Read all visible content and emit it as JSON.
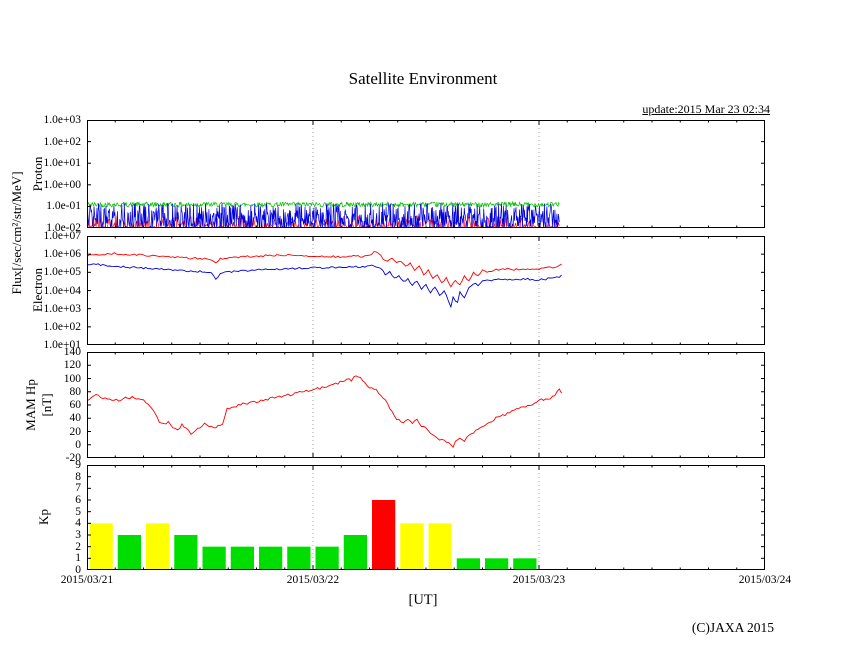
{
  "title": "Satellite Environment",
  "update_text": "update:2015 Mar 23 02:34",
  "xlabel": "[UT]",
  "copyright": "(C)JAXA 2015",
  "flux_label": "Flux[/sec/cm²/str/MeV]",
  "palette": {
    "red": "#ff0000",
    "blue": "#0000dd",
    "green": "#00bb00",
    "bar_green": "#00dd00",
    "bar_yellow": "#ffff00",
    "bar_red": "#ff0000",
    "grid": "#909090",
    "axis": "#000000"
  },
  "x_axis": {
    "min_day": 0,
    "max_day": 3,
    "data_end_day": 2.09,
    "minor_step_day": 0.125,
    "tick_labels": [
      "2015/03/21",
      "2015/03/22",
      "2015/03/23",
      "2015/03/24"
    ]
  },
  "chart_data": [
    {
      "id": "proton",
      "type": "line",
      "ylabel": "Proton",
      "yscale": "log10",
      "ylim": [
        -2,
        3
      ],
      "ytick_vals": [
        3,
        2,
        1,
        0,
        -1,
        -2
      ],
      "ytick_labels": [
        "1.0e+03",
        "1.0e+02",
        "1.0e+01",
        "1.0e+00",
        "1.0e-01",
        "1.0e-02"
      ],
      "series": [
        {
          "name": "proton-green",
          "color": "#00bb00",
          "style": "band",
          "lo": -1.03,
          "hi": -0.8,
          "pow": 1.0,
          "x_end": 2.09,
          "samples": 700
        },
        {
          "name": "proton-red",
          "color": "#ff0000",
          "style": "band",
          "lo": -2.0,
          "hi": -1.42,
          "pow": 3.0,
          "x_end": 2.09,
          "samples": 520
        },
        {
          "name": "proton-blue",
          "color": "#0000dd",
          "style": "band",
          "lo": -2.0,
          "hi": -0.85,
          "pow": 1.55,
          "x_end": 2.09,
          "samples": 950
        }
      ]
    },
    {
      "id": "electron",
      "type": "line",
      "ylabel": "Electron",
      "yscale": "log10",
      "ylim": [
        1,
        7
      ],
      "ytick_vals": [
        7,
        6,
        5,
        4,
        3,
        2,
        1
      ],
      "ytick_labels": [
        "1.0e+07",
        "1.0e+06",
        "1.0e+05",
        "1.0e+04",
        "1.0e+03",
        "1.0e+02",
        "1.0e+01"
      ],
      "series": [
        {
          "name": "electron-red",
          "color": "#ff0000",
          "style": "line",
          "jitter": 0.05,
          "points": [
            [
              0,
              5.92
            ],
            [
              0.06,
              5.98
            ],
            [
              0.12,
              6.03
            ],
            [
              0.18,
              5.99
            ],
            [
              0.25,
              5.95
            ],
            [
              0.3,
              5.9
            ],
            [
              0.35,
              5.86
            ],
            [
              0.42,
              5.8
            ],
            [
              0.5,
              5.76
            ],
            [
              0.55,
              5.7
            ],
            [
              0.57,
              5.48
            ],
            [
              0.59,
              5.74
            ],
            [
              0.63,
              5.8
            ],
            [
              0.7,
              5.86
            ],
            [
              0.76,
              5.9
            ],
            [
              0.82,
              5.93
            ],
            [
              0.88,
              5.96
            ],
            [
              0.94,
              5.93
            ],
            [
              1,
              5.9
            ],
            [
              1.06,
              5.87
            ],
            [
              1.12,
              5.85
            ],
            [
              1.18,
              5.9
            ],
            [
              1.22,
              5.87
            ],
            [
              1.25,
              5.92
            ],
            [
              1.27,
              6.12
            ],
            [
              1.29,
              6.05
            ],
            [
              1.31,
              5.75
            ],
            [
              1.33,
              5.6
            ],
            [
              1.35,
              5.82
            ],
            [
              1.37,
              5.5
            ],
            [
              1.39,
              5.62
            ],
            [
              1.41,
              5.3
            ],
            [
              1.43,
              5.52
            ],
            [
              1.45,
              5.1
            ],
            [
              1.47,
              5.32
            ],
            [
              1.49,
              4.9
            ],
            [
              1.51,
              5.12
            ],
            [
              1.53,
              4.62
            ],
            [
              1.55,
              4.9
            ],
            [
              1.57,
              4.4
            ],
            [
              1.59,
              4.7
            ],
            [
              1.61,
              4.22
            ],
            [
              1.63,
              4.6
            ],
            [
              1.65,
              4.3
            ],
            [
              1.67,
              4.8
            ],
            [
              1.69,
              4.52
            ],
            [
              1.71,
              5.0
            ],
            [
              1.73,
              4.82
            ],
            [
              1.75,
              5.1
            ],
            [
              1.78,
              5.02
            ],
            [
              1.81,
              5.15
            ],
            [
              1.85,
              5.2
            ],
            [
              1.89,
              5.14
            ],
            [
              1.93,
              5.2
            ],
            [
              1.97,
              5.16
            ],
            [
              2.01,
              5.2
            ],
            [
              2.05,
              5.26
            ],
            [
              2.08,
              5.3
            ],
            [
              2.1,
              5.46
            ]
          ]
        },
        {
          "name": "electron-blue",
          "color": "#0000dd",
          "style": "line",
          "jitter": 0.05,
          "points": [
            [
              0,
              5.46
            ],
            [
              0.05,
              5.42
            ],
            [
              0.1,
              5.36
            ],
            [
              0.15,
              5.3
            ],
            [
              0.2,
              5.28
            ],
            [
              0.25,
              5.24
            ],
            [
              0.3,
              5.2
            ],
            [
              0.35,
              5.15
            ],
            [
              0.4,
              5.1
            ],
            [
              0.45,
              5.06
            ],
            [
              0.5,
              5.04
            ],
            [
              0.55,
              5.0
            ],
            [
              0.57,
              4.6
            ],
            [
              0.59,
              4.92
            ],
            [
              0.62,
              5.02
            ],
            [
              0.66,
              5.06
            ],
            [
              0.7,
              5.1
            ],
            [
              0.75,
              5.13
            ],
            [
              0.8,
              5.16
            ],
            [
              0.85,
              5.18
            ],
            [
              0.9,
              5.2
            ],
            [
              0.95,
              5.23
            ],
            [
              1,
              5.25
            ],
            [
              1.05,
              5.26
            ],
            [
              1.1,
              5.28
            ],
            [
              1.15,
              5.3
            ],
            [
              1.2,
              5.3
            ],
            [
              1.25,
              5.33
            ],
            [
              1.27,
              5.4
            ],
            [
              1.3,
              5.18
            ],
            [
              1.32,
              4.9
            ],
            [
              1.34,
              5.02
            ],
            [
              1.36,
              4.7
            ],
            [
              1.38,
              4.82
            ],
            [
              1.4,
              4.5
            ],
            [
              1.42,
              4.62
            ],
            [
              1.44,
              4.3
            ],
            [
              1.46,
              4.5
            ],
            [
              1.48,
              4.1
            ],
            [
              1.5,
              4.3
            ],
            [
              1.52,
              3.9
            ],
            [
              1.54,
              4.2
            ],
            [
              1.56,
              3.7
            ],
            [
              1.58,
              4.0
            ],
            [
              1.6,
              3.42
            ],
            [
              1.61,
              3.05
            ],
            [
              1.62,
              3.6
            ],
            [
              1.64,
              3.3
            ],
            [
              1.65,
              3.9
            ],
            [
              1.67,
              3.62
            ],
            [
              1.69,
              4.2
            ],
            [
              1.71,
              4.4
            ],
            [
              1.73,
              4.3
            ],
            [
              1.75,
              4.5
            ],
            [
              1.78,
              4.56
            ],
            [
              1.82,
              4.6
            ],
            [
              1.86,
              4.62
            ],
            [
              1.9,
              4.6
            ],
            [
              1.94,
              4.63
            ],
            [
              1.98,
              4.6
            ],
            [
              2.02,
              4.62
            ],
            [
              2.06,
              4.68
            ],
            [
              2.09,
              4.75
            ],
            [
              2.1,
              4.86
            ]
          ]
        }
      ]
    },
    {
      "id": "mam",
      "type": "line",
      "ylabel_lines": [
        "MAM Hp",
        "[nT]"
      ],
      "yscale": "linear",
      "ylim": [
        -20,
        140
      ],
      "ytick_vals": [
        140,
        120,
        100,
        80,
        60,
        40,
        20,
        0,
        -20
      ],
      "ytick_labels": [
        "140",
        "120",
        "100",
        "80",
        "60",
        "40",
        "20",
        "0",
        "-20"
      ],
      "series": [
        {
          "name": "mam-hp",
          "color": "#ff0000",
          "style": "line",
          "jitter": 2,
          "points": [
            [
              0,
              68
            ],
            [
              0.04,
              74
            ],
            [
              0.08,
              70
            ],
            [
              0.12,
              66
            ],
            [
              0.16,
              69
            ],
            [
              0.2,
              72
            ],
            [
              0.24,
              70
            ],
            [
              0.27,
              62
            ],
            [
              0.3,
              48
            ],
            [
              0.32,
              34
            ],
            [
              0.34,
              30
            ],
            [
              0.36,
              34
            ],
            [
              0.38,
              26
            ],
            [
              0.4,
              22
            ],
            [
              0.42,
              30
            ],
            [
              0.44,
              24
            ],
            [
              0.46,
              16
            ],
            [
              0.48,
              20
            ],
            [
              0.5,
              26
            ],
            [
              0.52,
              32
            ],
            [
              0.54,
              28
            ],
            [
              0.56,
              25
            ],
            [
              0.6,
              30
            ],
            [
              0.62,
              55
            ],
            [
              0.64,
              57
            ],
            [
              0.67,
              60
            ],
            [
              0.7,
              62
            ],
            [
              0.74,
              64
            ],
            [
              0.78,
              67
            ],
            [
              0.82,
              70
            ],
            [
              0.86,
              73
            ],
            [
              0.9,
              76
            ],
            [
              0.94,
              80
            ],
            [
              0.98,
              82
            ],
            [
              1.02,
              85
            ],
            [
              1.06,
              88
            ],
            [
              1.1,
              92
            ],
            [
              1.13,
              96
            ],
            [
              1.15,
              100
            ],
            [
              1.17,
              97
            ],
            [
              1.19,
              105
            ],
            [
              1.21,
              100
            ],
            [
              1.23,
              92
            ],
            [
              1.25,
              86
            ],
            [
              1.28,
              82
            ],
            [
              1.3,
              76
            ],
            [
              1.32,
              68
            ],
            [
              1.34,
              55
            ],
            [
              1.36,
              42
            ],
            [
              1.38,
              38
            ],
            [
              1.4,
              34
            ],
            [
              1.42,
              40
            ],
            [
              1.44,
              32
            ],
            [
              1.46,
              38
            ],
            [
              1.48,
              28
            ],
            [
              1.5,
              24
            ],
            [
              1.52,
              16
            ],
            [
              1.54,
              12
            ],
            [
              1.56,
              8
            ],
            [
              1.58,
              6
            ],
            [
              1.6,
              2
            ],
            [
              1.62,
              -4
            ],
            [
              1.63,
              4
            ],
            [
              1.65,
              10
            ],
            [
              1.67,
              6
            ],
            [
              1.69,
              14
            ],
            [
              1.71,
              18
            ],
            [
              1.73,
              24
            ],
            [
              1.76,
              30
            ],
            [
              1.79,
              36
            ],
            [
              1.82,
              42
            ],
            [
              1.85,
              46
            ],
            [
              1.88,
              50
            ],
            [
              1.91,
              54
            ],
            [
              1.94,
              58
            ],
            [
              1.97,
              61
            ],
            [
              2,
              66
            ],
            [
              2.03,
              70
            ],
            [
              2.05,
              68
            ],
            [
              2.07,
              76
            ],
            [
              2.09,
              84
            ],
            [
              2.1,
              78
            ]
          ]
        }
      ]
    },
    {
      "id": "kp",
      "type": "bar",
      "ylabel": "Kp",
      "yscale": "linear",
      "ylim": [
        0,
        9
      ],
      "ytick_vals": [
        9,
        8,
        7,
        6,
        5,
        4,
        3,
        2,
        1,
        0
      ],
      "ytick_labels": [
        "9",
        "8",
        "7",
        "6",
        "5",
        "4",
        "3",
        "2",
        "1",
        "0"
      ],
      "bar_slot_days": 0.125,
      "bars": [
        {
          "start_day": 0.0,
          "kp": 4,
          "color": "#ffff00"
        },
        {
          "start_day": 0.125,
          "kp": 3,
          "color": "#00dd00"
        },
        {
          "start_day": 0.25,
          "kp": 4,
          "color": "#ffff00"
        },
        {
          "start_day": 0.375,
          "kp": 3,
          "color": "#00dd00"
        },
        {
          "start_day": 0.5,
          "kp": 2,
          "color": "#00dd00"
        },
        {
          "start_day": 0.625,
          "kp": 2,
          "color": "#00dd00"
        },
        {
          "start_day": 0.75,
          "kp": 2,
          "color": "#00dd00"
        },
        {
          "start_day": 0.875,
          "kp": 2,
          "color": "#00dd00"
        },
        {
          "start_day": 1.0,
          "kp": 2,
          "color": "#00dd00"
        },
        {
          "start_day": 1.125,
          "kp": 3,
          "color": "#00dd00"
        },
        {
          "start_day": 1.25,
          "kp": 6,
          "color": "#ff0000"
        },
        {
          "start_day": 1.375,
          "kp": 4,
          "color": "#ffff00"
        },
        {
          "start_day": 1.5,
          "kp": 4,
          "color": "#ffff00"
        },
        {
          "start_day": 1.625,
          "kp": 1,
          "color": "#00dd00"
        },
        {
          "start_day": 1.75,
          "kp": 1,
          "color": "#00dd00"
        },
        {
          "start_day": 1.875,
          "kp": 1,
          "color": "#00dd00"
        }
      ]
    }
  ]
}
